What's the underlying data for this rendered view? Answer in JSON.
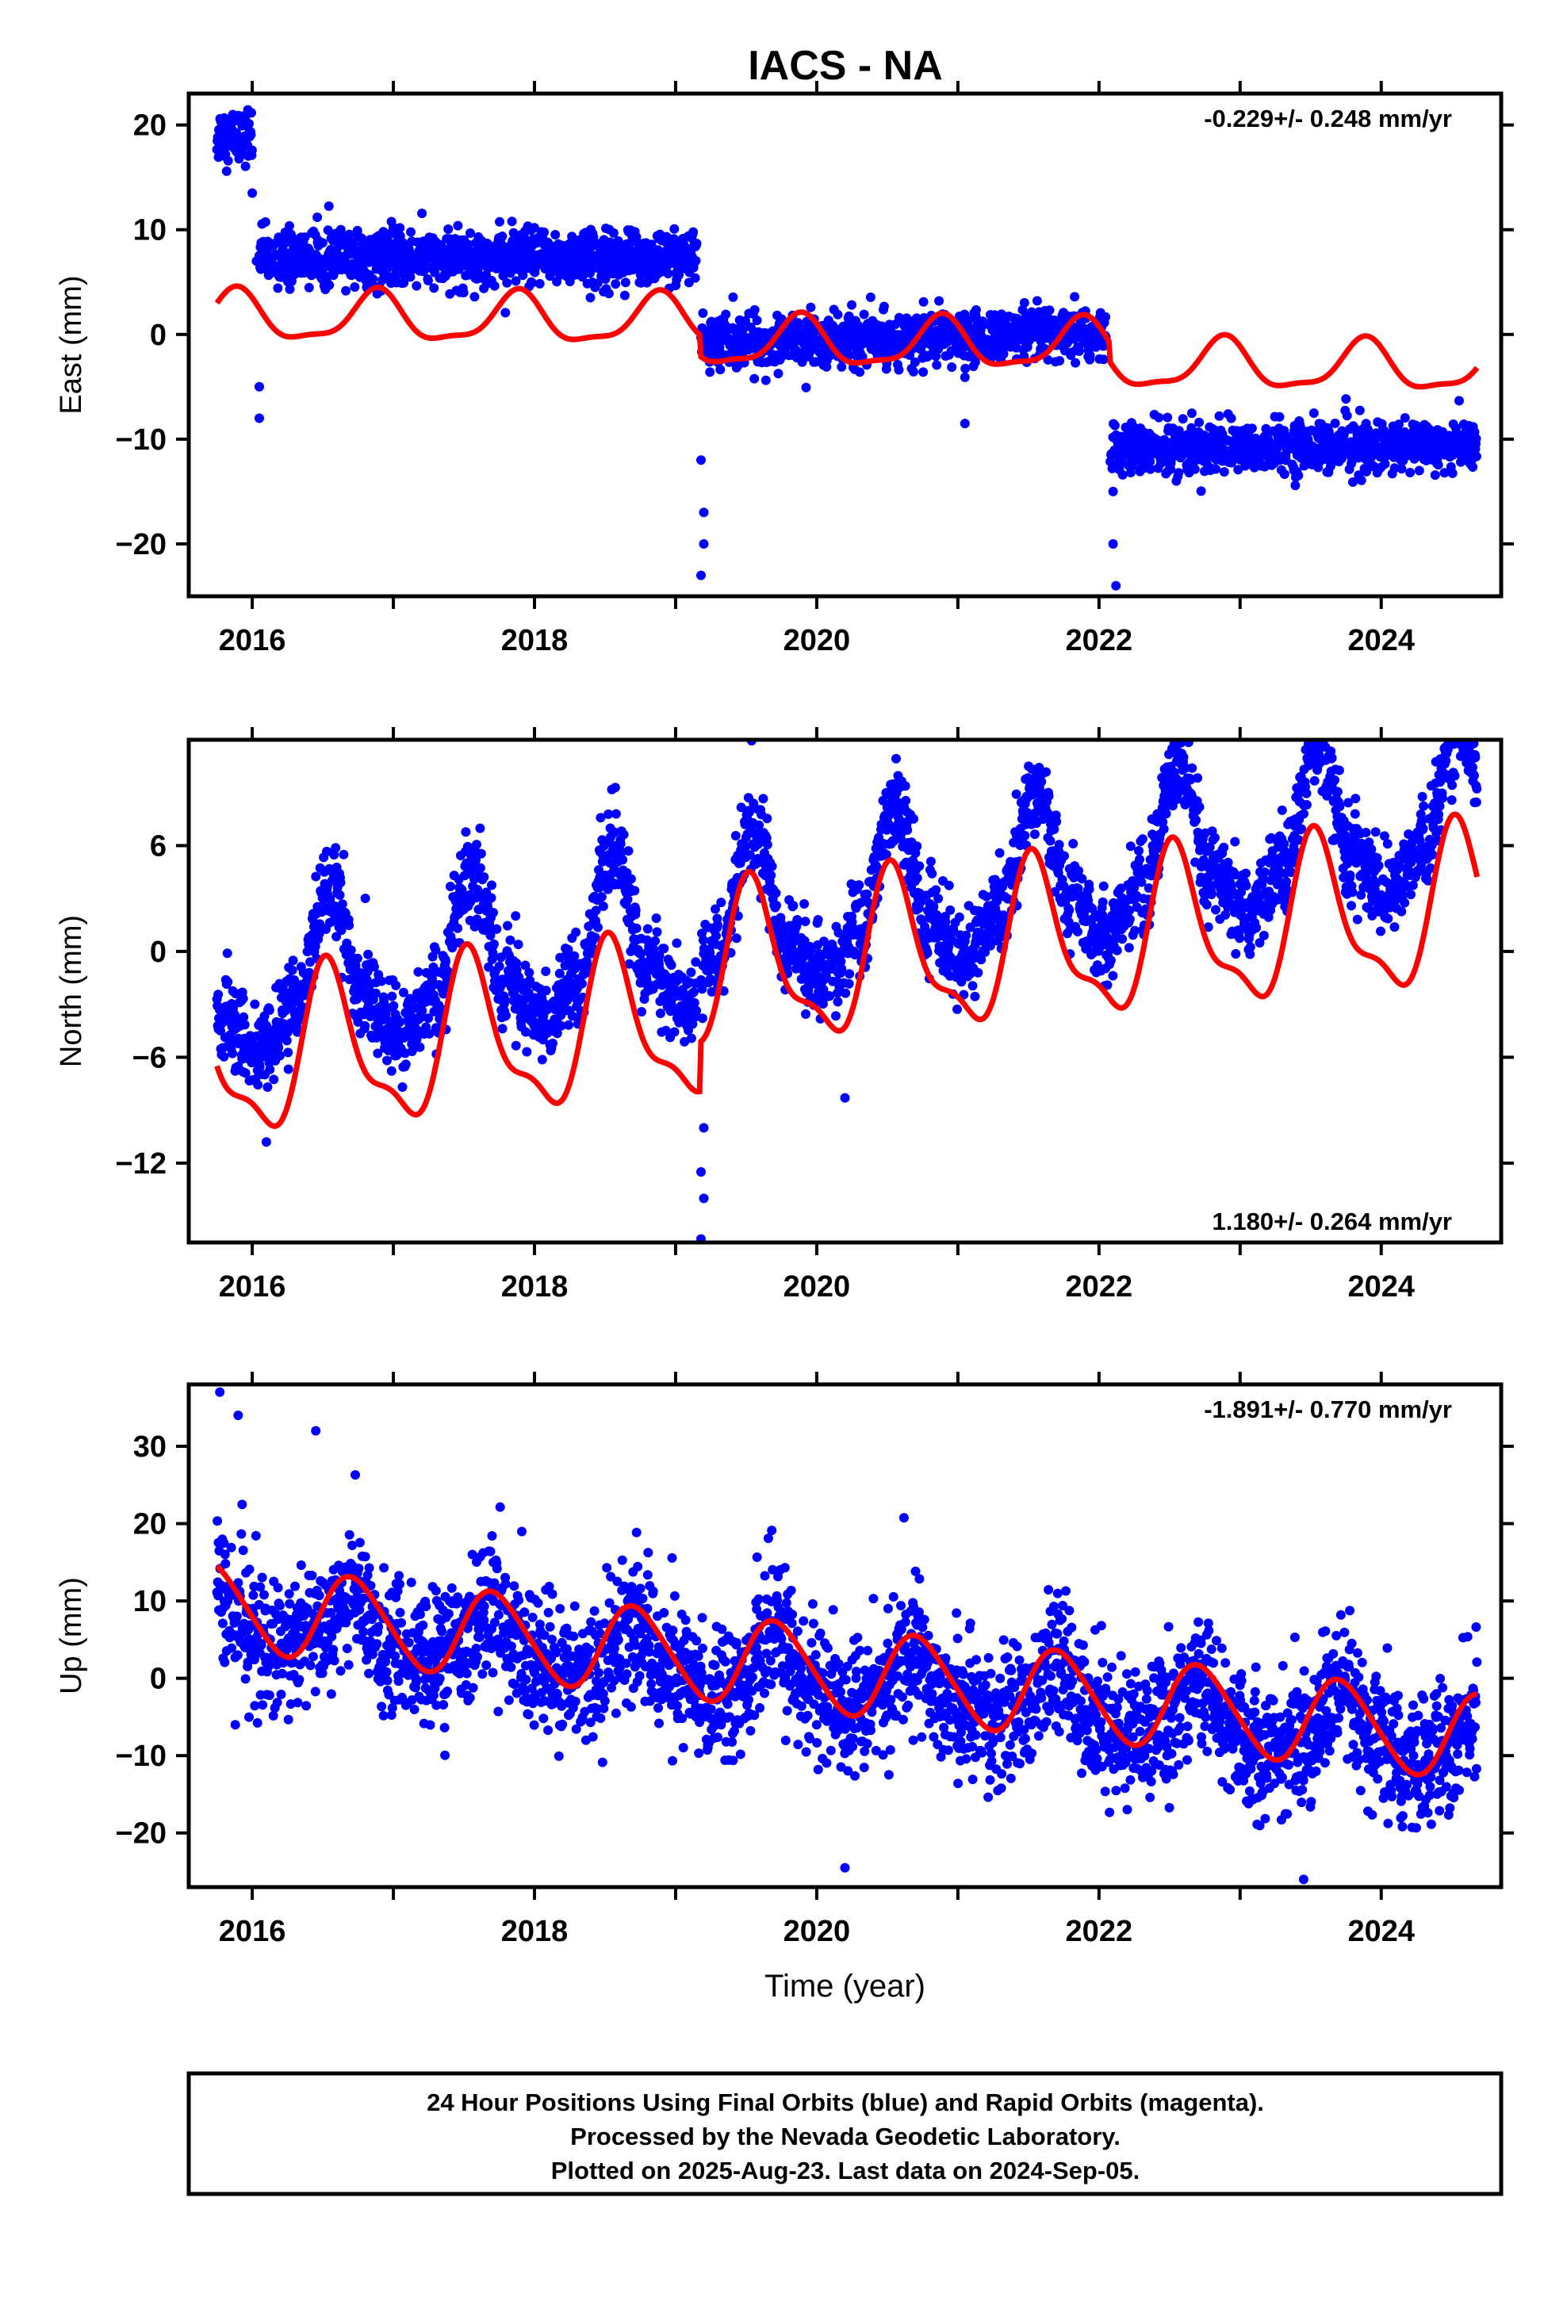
{
  "page_title": "IACS - NA",
  "colors": {
    "data_points": "#0000ff",
    "model_fit": "#ff0000",
    "frame": "#000000"
  },
  "footer": {
    "line1": "24 Hour Positions Using Final Orbits (blue) and Rapid Orbits (magenta).",
    "line2": "Processed by the Nevada Geodetic Laboratory.",
    "line3": "Plotted on 2025-Aug-23. Last data on 2024-Sep-05."
  },
  "chart_data": [
    {
      "type": "scatter",
      "panel": "east",
      "title": "IACS - NA",
      "xlabel": "",
      "ylabel": "East (mm)",
      "xlim": [
        2015.55,
        2024.85
      ],
      "ylim": [
        -25,
        23
      ],
      "xticks": [
        2016,
        2018,
        2020,
        2022,
        2024
      ],
      "yticks": [
        20,
        10,
        0,
        -10,
        -20
      ],
      "grid": false,
      "rate_label": "-0.229+/- 0.248 mm/yr",
      "rate_position": "top-right",
      "segments": [
        {
          "x": [
            2015.75,
            2016.0
          ],
          "level": 19,
          "slope": 0,
          "scatter": 1.3
        },
        {
          "x": [
            2016.05,
            2019.15
          ],
          "level": 7.3,
          "slope": 0,
          "scatter": 1.3
        },
        {
          "x": [
            2019.18,
            2022.05
          ],
          "level": -0.7,
          "slope": 0.2,
          "scatter": 1.2
        },
        {
          "x": [
            2022.08,
            2024.68
          ],
          "level": -11,
          "slope": 0.15,
          "scatter": 1.2
        }
      ],
      "outliers": [
        [
          2016.0,
          13.5
        ],
        [
          2016.03,
          7
        ],
        [
          2016.05,
          -5
        ],
        [
          2016.05,
          -8
        ],
        [
          2019.18,
          -12
        ],
        [
          2019.2,
          -17
        ],
        [
          2019.2,
          -20
        ],
        [
          2019.18,
          -23
        ],
        [
          2021.05,
          -8.5
        ],
        [
          2022.1,
          -15
        ],
        [
          2022.1,
          -20
        ],
        [
          2022.12,
          -24
        ]
      ],
      "model": {
        "offsets": [
          [
            2015.75,
            0
          ],
          [
            2019.17,
            -2
          ],
          [
            2022.07,
            -1.8
          ]
        ],
        "annual_amp": 2.3,
        "annual_peak": 2015.88,
        "semiannual_amp": 0.7,
        "semiannual_peak": 2015.9,
        "start_value": 3.0
      }
    },
    {
      "type": "scatter",
      "panel": "north",
      "title": "",
      "xlabel": "",
      "ylabel": "North (mm)",
      "xlim": [
        2015.55,
        2024.85
      ],
      "ylim": [
        -16.5,
        12
      ],
      "xticks": [
        2016,
        2018,
        2020,
        2022,
        2024
      ],
      "yticks": [
        6,
        0,
        -6,
        -12
      ],
      "grid": false,
      "rate_label": "1.180+/- 0.264 mm/yr",
      "rate_position": "bottom-right",
      "segments": [
        {
          "x": [
            2015.75,
            2019.15
          ],
          "level": -2.5,
          "slope": 0.95,
          "scatter": 1.2
        },
        {
          "x": [
            2019.18,
            2024.68
          ],
          "level": 1.0,
          "slope": 1.2,
          "scatter": 1.2
        }
      ],
      "data_annual_amp": 6.0,
      "data_annual_peak": 2016.55,
      "outliers": [
        [
          2019.2,
          -10
        ],
        [
          2019.18,
          -12.5
        ],
        [
          2019.2,
          -14
        ],
        [
          2019.18,
          -16.3
        ],
        [
          2016.1,
          -10.8
        ],
        [
          2020.2,
          -8.3
        ]
      ],
      "model": {
        "offsets": [
          [
            2015.75,
            0
          ],
          [
            2019.17,
            2.8
          ]
        ],
        "annual_amp": 4.2,
        "annual_peak": 2016.55,
        "semiannual_amp": 1.5,
        "semiannual_peak": 2016.5,
        "start_value": -6.5
      }
    },
    {
      "type": "scatter",
      "panel": "up",
      "title": "",
      "xlabel": "Time (year)",
      "ylabel": "Up (mm)",
      "xlim": [
        2015.55,
        2024.85
      ],
      "ylim": [
        -27,
        38
      ],
      "xticks": [
        2016,
        2018,
        2020,
        2022,
        2024
      ],
      "yticks": [
        30,
        20,
        10,
        0,
        -10,
        -20
      ],
      "grid": false,
      "rate_label": "-1.891+/- 0.770 mm/yr",
      "rate_position": "top-right",
      "segments": [
        {
          "x": [
            2015.75,
            2024.68
          ],
          "level": 8,
          "slope": -1.9,
          "scatter": 4.3
        }
      ],
      "data_annual_amp": 5.5,
      "data_annual_peak": 2016.7,
      "outliers": [
        [
          2015.77,
          37
        ],
        [
          2015.9,
          34
        ],
        [
          2016.45,
          32
        ],
        [
          2023.45,
          -26
        ],
        [
          2020.2,
          -24.5
        ],
        [
          2015.88,
          -6
        ]
      ],
      "model": {
        "offsets": [],
        "annual_amp": 5.5,
        "annual_peak": 2016.72,
        "semiannual_amp": 0.6,
        "semiannual_peak": 2016.6,
        "start_value": 14.5
      }
    }
  ]
}
